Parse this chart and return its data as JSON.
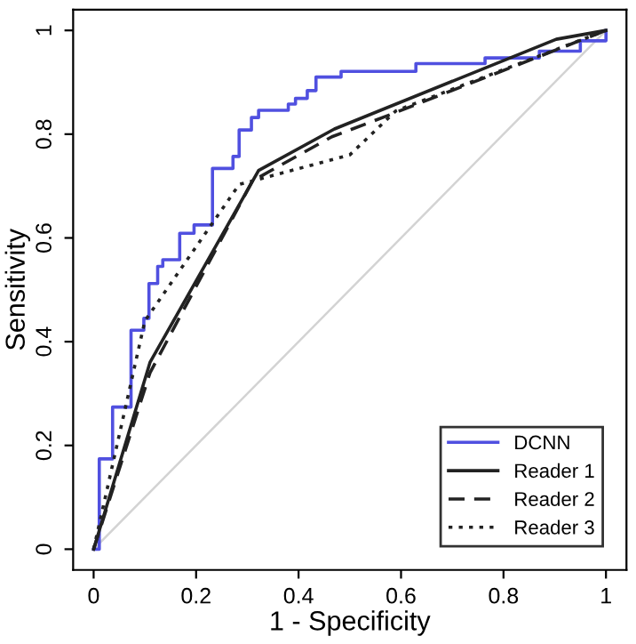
{
  "chart_data": {
    "type": "line",
    "xlabel": "1 - Specificity",
    "ylabel": "Sensitivity",
    "xlim": [
      -0.04,
      1.04
    ],
    "ylim": [
      -0.04,
      1.04
    ],
    "xticks": [
      0,
      0.2,
      0.4,
      0.6,
      0.8,
      1
    ],
    "yticks": [
      0,
      0.2,
      0.4,
      0.6,
      0.8,
      1
    ],
    "grid": false,
    "legend": "bottom right",
    "marker": "none",
    "series": [
      {
        "color": "#d3d3d3",
        "line_style": "solid",
        "x": [
          0,
          1
        ],
        "values": [
          0,
          1
        ]
      },
      {
        "name": "DCNN",
        "type": "step",
        "color": "#5050e0",
        "line_style": "solid",
        "x": [
          0,
          0.011,
          0.037,
          0.073,
          0.098,
          0.108,
          0.125,
          0.135,
          0.168,
          0.196,
          0.232,
          0.272,
          0.284,
          0.308,
          0.322,
          0.38,
          0.394,
          0.417,
          0.434,
          0.483,
          0.629,
          0.764,
          0.87,
          0.95,
          1
        ],
        "values": [
          0,
          0.174,
          0.274,
          0.422,
          0.445,
          0.512,
          0.545,
          0.558,
          0.609,
          0.625,
          0.734,
          0.757,
          0.808,
          0.832,
          0.846,
          0.858,
          0.869,
          0.884,
          0.91,
          0.921,
          0.936,
          0.947,
          0.96,
          0.98,
          1
        ]
      },
      {
        "name": "Reader 1",
        "type": "line",
        "color": "#222222",
        "line_style": "solid",
        "x": [
          0,
          0.11,
          0.322,
          0.47,
          0.903,
          1
        ],
        "values": [
          0,
          0.36,
          0.73,
          0.81,
          0.983,
          1
        ]
      },
      {
        "name": "Reader 2",
        "type": "line",
        "color": "#222222",
        "line_style": "dashed",
        "x": [
          0,
          0.11,
          0.31,
          0.465,
          0.572,
          1
        ],
        "values": [
          0,
          0.34,
          0.71,
          0.795,
          0.835,
          1
        ]
      },
      {
        "name": "Reader 3",
        "type": "line",
        "color": "#222222",
        "line_style": "dotted",
        "x": [
          0,
          0.1,
          0.284,
          0.5,
          0.59,
          1
        ],
        "values": [
          0,
          0.44,
          0.703,
          0.76,
          0.845,
          1
        ]
      }
    ]
  }
}
